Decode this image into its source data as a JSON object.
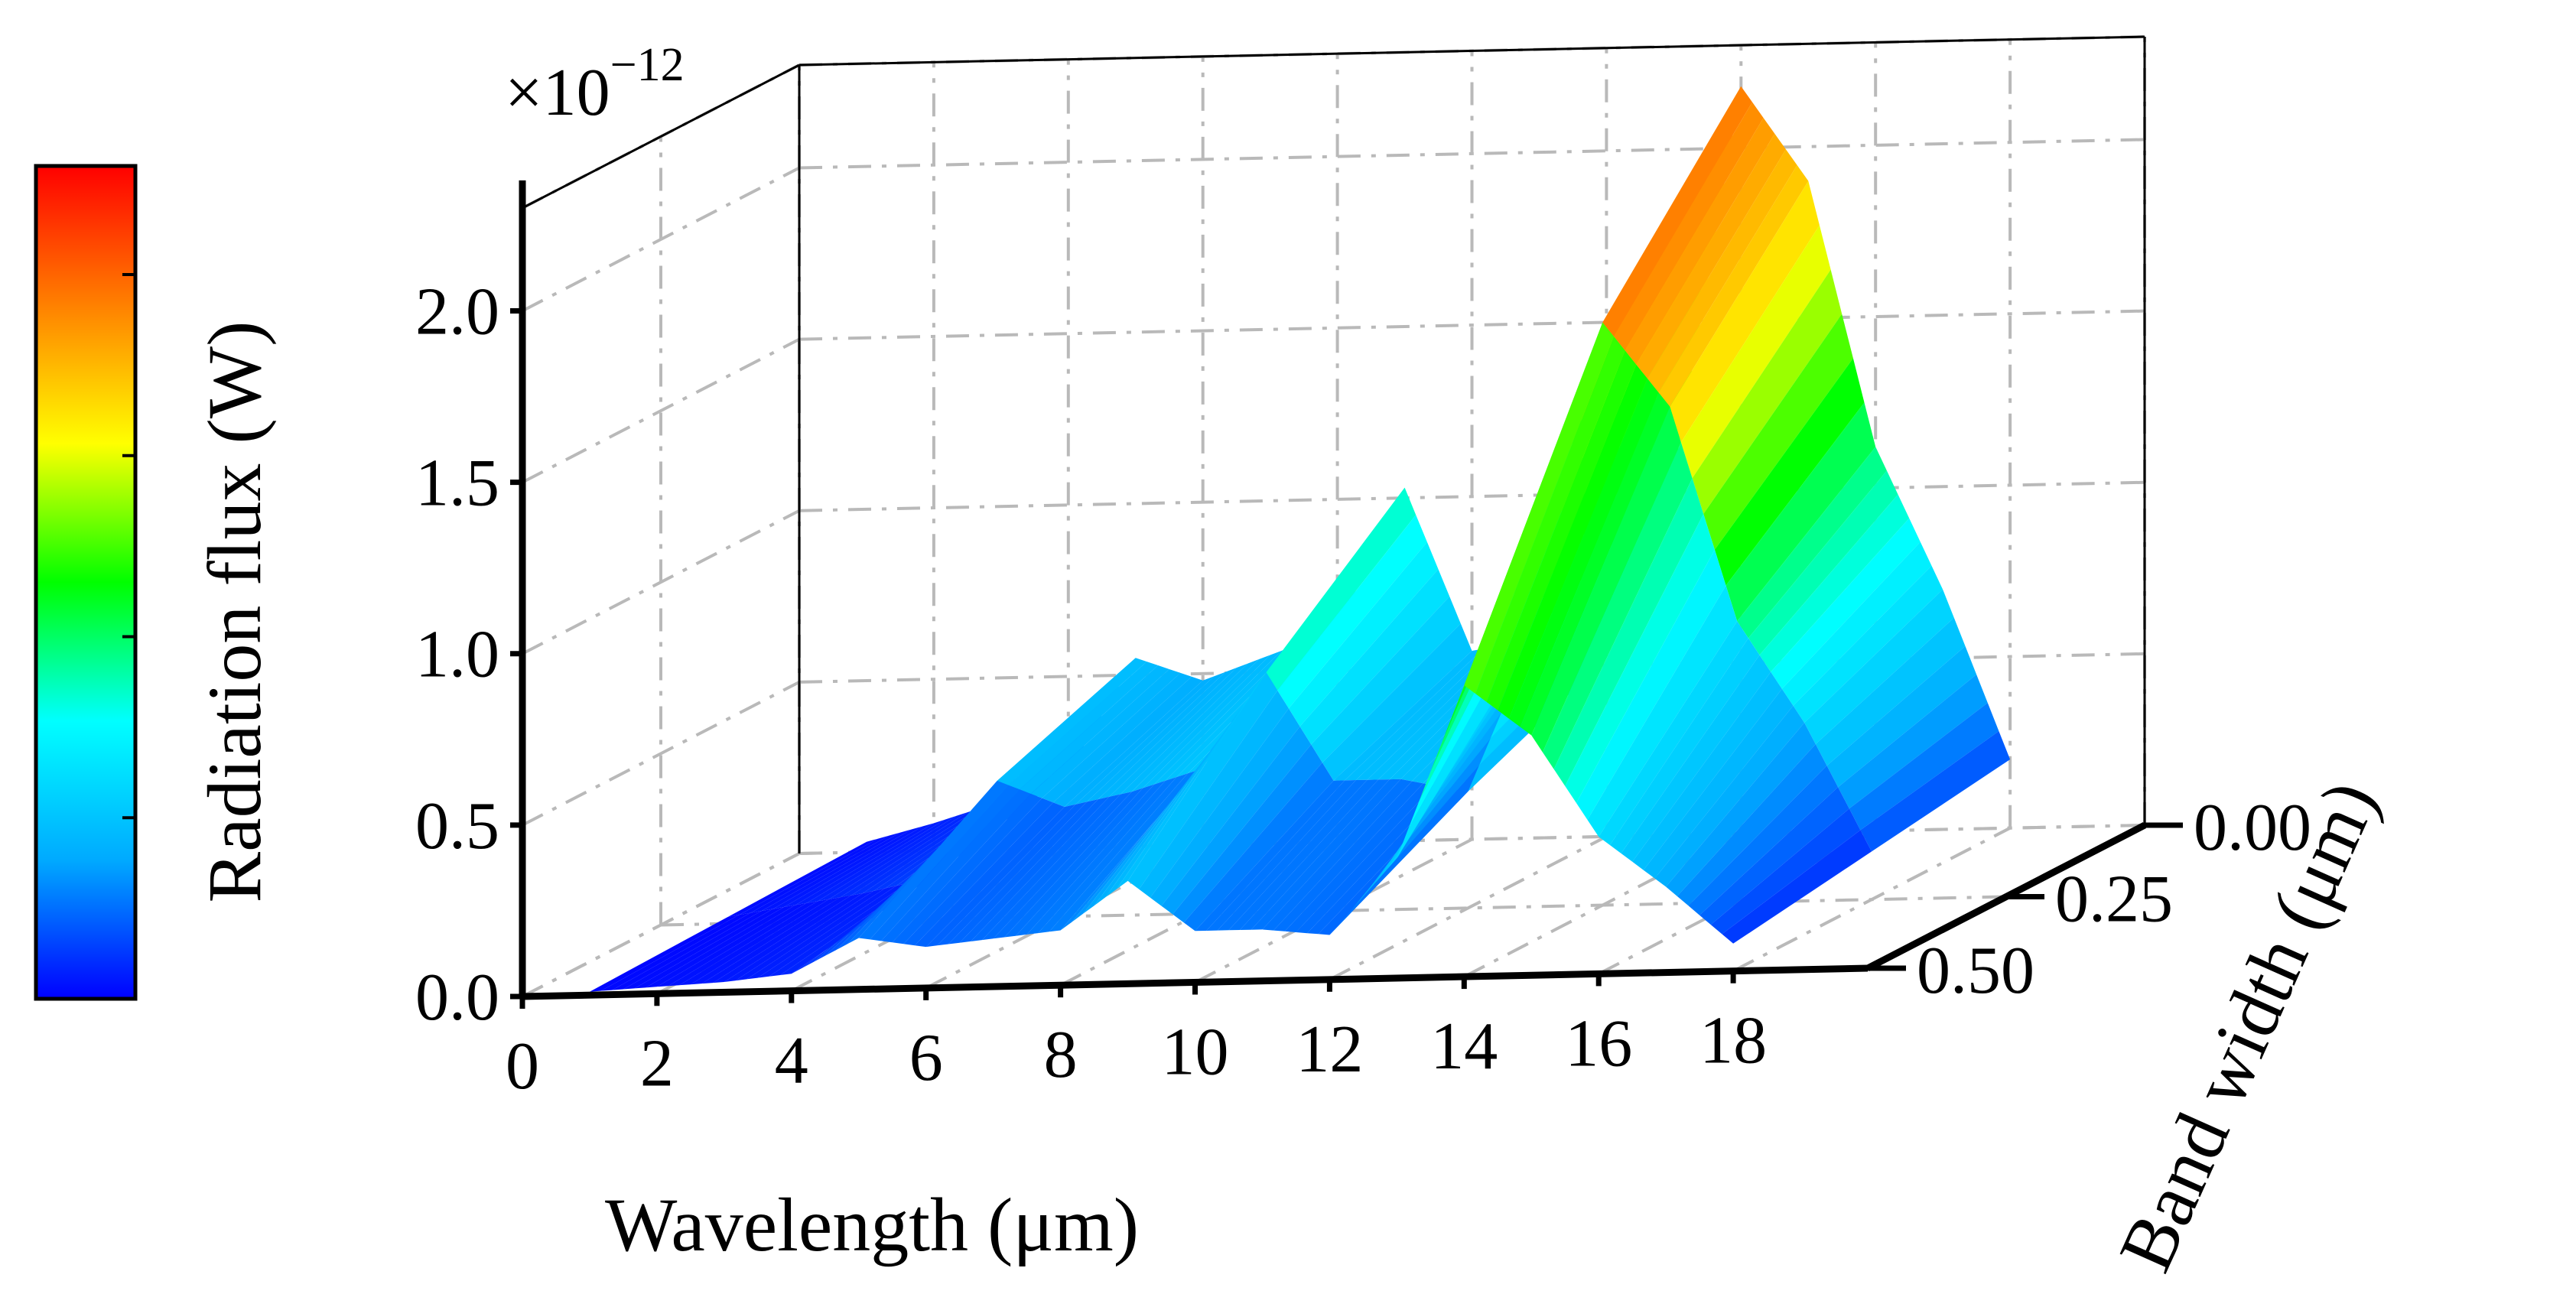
{
  "chart_data": {
    "type": "surface3d",
    "title": "",
    "multiplier": "×10",
    "multiplier_exponent": "−12",
    "xlabel": "Wavelength (μm)",
    "ylabel": "Band width (μm)",
    "zlabel": "Radiation flux (W)",
    "x_ticks": [
      "0",
      "2",
      "4",
      "6",
      "8",
      "10",
      "12",
      "14",
      "16",
      "18"
    ],
    "y_ticks": [
      "0.00",
      "0.25",
      "0.50"
    ],
    "z_ticks": [
      "0.0",
      "0.5",
      "1.0",
      "1.5",
      "2.0"
    ],
    "xlim": [
      0,
      20
    ],
    "ylim": [
      0.0,
      0.5
    ],
    "zlim": [
      0.0,
      2.3
    ],
    "colormap": [
      "#0000ff",
      "#00aaff",
      "#00ffff",
      "#00ff00",
      "#ffff00",
      "#ff8000",
      "#ff0000"
    ],
    "x": [
      1,
      2,
      3,
      4,
      5,
      6,
      7,
      8,
      9,
      10,
      11,
      12,
      13,
      14,
      15,
      16,
      17,
      18
    ],
    "band_width": [
      0.0,
      0.25,
      0.5
    ],
    "z": [
      [
        0.03,
        0.08,
        0.14,
        0.22,
        0.55,
        0.48,
        0.55,
        0.62,
        1.03,
        0.55,
        0.58,
        0.52,
        1.05,
        2.18,
        1.9,
        1.12,
        0.7,
        0.2
      ],
      [
        0.02,
        0.05,
        0.08,
        0.12,
        0.4,
        0.32,
        0.36,
        0.42,
        0.7,
        0.38,
        0.38,
        0.34,
        0.8,
        1.7,
        1.45,
        0.82,
        0.52,
        0.14
      ],
      [
        0.01,
        0.02,
        0.03,
        0.05,
        0.15,
        0.12,
        0.14,
        0.16,
        0.3,
        0.15,
        0.15,
        0.13,
        0.35,
        0.85,
        0.7,
        0.4,
        0.25,
        0.08
      ]
    ]
  }
}
